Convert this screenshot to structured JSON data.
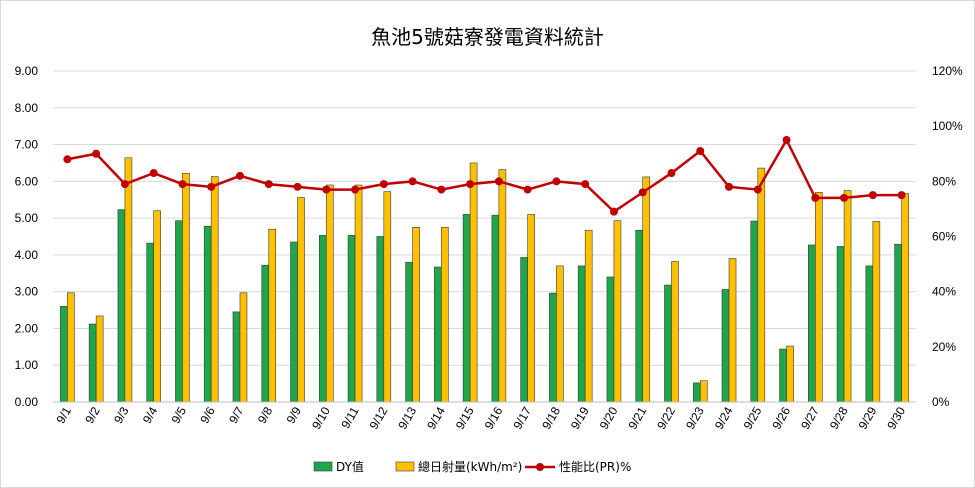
{
  "chart_data": {
    "type": "bar",
    "title": "魚池5號菇寮發電資料統計",
    "categories": [
      "9/1",
      "9/2",
      "9/3",
      "9/4",
      "9/5",
      "9/6",
      "9/7",
      "9/8",
      "9/9",
      "9/10",
      "9/11",
      "9/12",
      "9/13",
      "9/14",
      "9/15",
      "9/16",
      "9/17",
      "9/18",
      "9/19",
      "9/20",
      "9/21",
      "9/22",
      "9/23",
      "9/24",
      "9/25",
      "9/26",
      "9/27",
      "9/28",
      "9/29",
      "9/30"
    ],
    "y_left": {
      "ticks": [
        "0.00",
        "1.00",
        "2.00",
        "3.00",
        "4.00",
        "5.00",
        "6.00",
        "7.00",
        "8.00",
        "9.00"
      ],
      "ylim": [
        0,
        9
      ]
    },
    "y_right": {
      "ticks": [
        "0%",
        "20%",
        "40%",
        "60%",
        "80%",
        "100%",
        "120%"
      ],
      "ylim": [
        0,
        120
      ]
    },
    "grid": true,
    "legend_position": "bottom",
    "series": [
      {
        "name": "DY值",
        "type": "bar",
        "axis": "left",
        "color": "#1fa54a",
        "values": [
          2.6,
          2.12,
          5.23,
          4.32,
          4.93,
          4.78,
          2.45,
          3.72,
          4.35,
          4.53,
          4.53,
          4.5,
          3.8,
          3.67,
          5.1,
          5.08,
          3.93,
          2.96,
          3.7,
          3.4,
          4.67,
          3.18,
          0.52,
          3.06,
          4.92,
          1.44,
          4.27,
          4.23,
          3.7,
          4.29
        ]
      },
      {
        "name": "總日射量(kWh/m²)",
        "type": "bar",
        "axis": "left",
        "color": "#ffc000",
        "values": [
          2.97,
          2.34,
          6.64,
          5.2,
          6.22,
          6.13,
          2.97,
          4.7,
          5.56,
          5.9,
          5.9,
          5.72,
          4.75,
          4.75,
          6.5,
          6.32,
          5.1,
          3.7,
          4.67,
          4.93,
          6.12,
          3.82,
          0.58,
          3.9,
          6.36,
          1.52,
          5.7,
          5.75,
          4.91,
          5.67
        ]
      },
      {
        "name": "性能比(PR)%",
        "type": "line",
        "axis": "right",
        "color": "#c00000",
        "values": [
          88,
          90,
          79,
          83,
          79,
          78,
          82,
          79,
          78,
          77,
          77,
          79,
          80,
          77,
          79,
          80,
          77,
          80,
          79,
          69,
          76,
          83,
          91,
          78,
          77,
          95,
          74,
          74,
          75,
          75
        ]
      }
    ]
  }
}
